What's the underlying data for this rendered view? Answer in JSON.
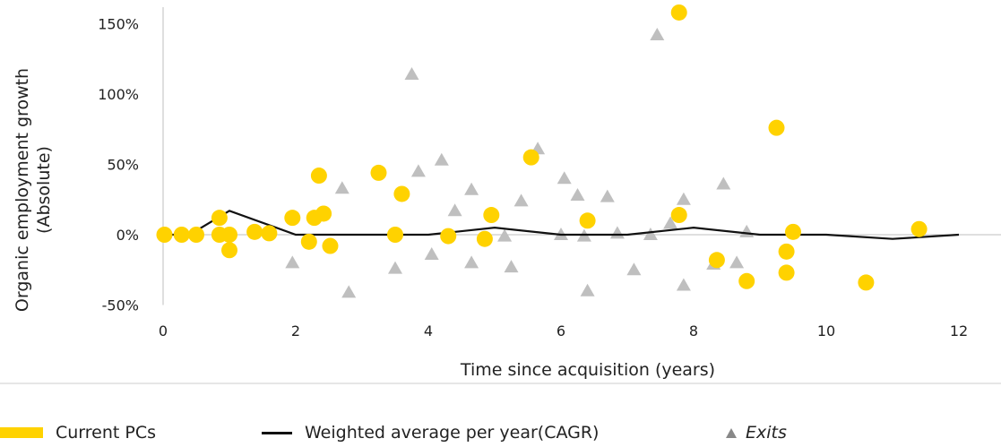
{
  "chart_data": {
    "type": "scatter",
    "xlabel": "Time since acquisition (years)",
    "ylabel": [
      "Organic employment growth",
      "(Absolute)"
    ],
    "xlim": [
      0,
      12.5
    ],
    "ylim": [
      -0.5,
      1.6
    ],
    "x_ticks": [
      0,
      2,
      4,
      6,
      8,
      10,
      12
    ],
    "x_tick_labels": [
      "0",
      "2",
      "4",
      "6",
      "8",
      "10",
      "12"
    ],
    "y_ticks": [
      -0.5,
      0,
      0.5,
      1.0,
      1.5
    ],
    "y_tick_labels": [
      "-50%",
      "0%",
      "50%",
      "100%",
      "150%"
    ],
    "grid": false,
    "legend_position": "bottom",
    "colors": {
      "current": "#FFD200",
      "exits": "#BFBFBF",
      "line": "#111111",
      "axis": "#BFBFBF"
    },
    "series": [
      {
        "name": "Current PCs",
        "marker": "circle",
        "points": [
          [
            0.02,
            0.0
          ],
          [
            0.28,
            0.0
          ],
          [
            0.5,
            0.0
          ],
          [
            0.85,
            0.12
          ],
          [
            0.85,
            0.0
          ],
          [
            1.0,
            0.0
          ],
          [
            1.0,
            -0.11
          ],
          [
            1.38,
            0.02
          ],
          [
            1.6,
            0.01
          ],
          [
            1.95,
            0.12
          ],
          [
            2.2,
            -0.05
          ],
          [
            2.28,
            0.12
          ],
          [
            2.35,
            0.42
          ],
          [
            2.42,
            0.15
          ],
          [
            2.52,
            -0.08
          ],
          [
            3.25,
            0.44
          ],
          [
            3.5,
            0.0
          ],
          [
            3.6,
            0.29
          ],
          [
            4.3,
            -0.01
          ],
          [
            4.85,
            -0.03
          ],
          [
            4.95,
            0.14
          ],
          [
            5.55,
            0.55
          ],
          [
            6.4,
            0.1
          ],
          [
            7.78,
            0.14
          ],
          [
            7.78,
            1.58
          ],
          [
            8.35,
            -0.18
          ],
          [
            8.8,
            -0.33
          ],
          [
            9.25,
            0.76
          ],
          [
            9.4,
            -0.12
          ],
          [
            9.4,
            -0.27
          ],
          [
            9.5,
            0.02
          ],
          [
            10.6,
            -0.34
          ],
          [
            11.4,
            0.04
          ]
        ]
      },
      {
        "name": "Exits",
        "marker": "triangle",
        "points": [
          [
            1.95,
            -0.2
          ],
          [
            2.8,
            -0.41
          ],
          [
            2.7,
            0.33
          ],
          [
            3.5,
            -0.24
          ],
          [
            3.75,
            1.14
          ],
          [
            3.85,
            0.45
          ],
          [
            4.05,
            -0.14
          ],
          [
            4.2,
            0.53
          ],
          [
            4.4,
            0.17
          ],
          [
            4.65,
            -0.2
          ],
          [
            4.65,
            0.32
          ],
          [
            5.15,
            -0.01
          ],
          [
            5.25,
            -0.23
          ],
          [
            5.4,
            0.24
          ],
          [
            5.65,
            0.61
          ],
          [
            6.0,
            0.0
          ],
          [
            6.05,
            0.4
          ],
          [
            6.25,
            0.28
          ],
          [
            6.35,
            -0.01
          ],
          [
            6.4,
            -0.4
          ],
          [
            6.7,
            0.27
          ],
          [
            6.85,
            0.01
          ],
          [
            7.1,
            -0.25
          ],
          [
            7.35,
            0.0
          ],
          [
            7.45,
            1.42
          ],
          [
            7.65,
            0.08
          ],
          [
            7.85,
            0.25
          ],
          [
            7.85,
            -0.36
          ],
          [
            8.3,
            -0.21
          ],
          [
            8.45,
            0.36
          ],
          [
            8.65,
            -0.2
          ],
          [
            8.8,
            0.02
          ]
        ]
      },
      {
        "name": "Weighted average per year(CAGR)",
        "marker": "line",
        "points": [
          [
            0,
            0.0
          ],
          [
            0.4,
            0.0
          ],
          [
            1.0,
            0.17
          ],
          [
            2.0,
            0.0
          ],
          [
            3.0,
            0.0
          ],
          [
            4.0,
            0.0
          ],
          [
            5.0,
            0.05
          ],
          [
            6.0,
            0.0
          ],
          [
            7.0,
            0.0
          ],
          [
            8.0,
            0.05
          ],
          [
            9.0,
            0.0
          ],
          [
            10.0,
            0.0
          ],
          [
            11.0,
            -0.03
          ],
          [
            12.0,
            0.0
          ]
        ]
      }
    ]
  },
  "legend": {
    "current_label": "Current PCs",
    "line_label": "Weighted average per year(CAGR)",
    "exits_label": "Exits"
  }
}
